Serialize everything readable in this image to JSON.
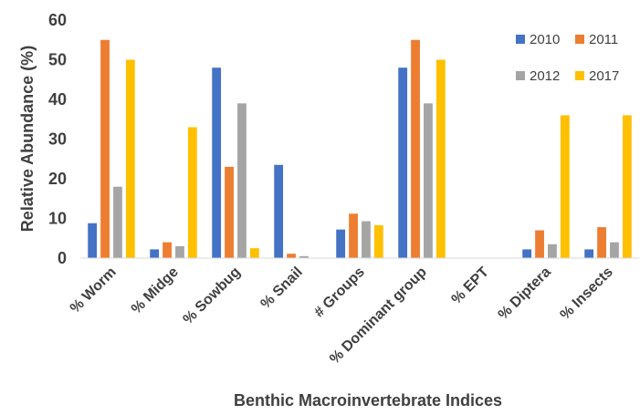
{
  "chart_data": {
    "type": "bar",
    "title": "",
    "xlabel": "Benthic Macroinvertebrate Indices",
    "ylabel": "Relative Abundance (%)",
    "ylim": [
      0,
      60
    ],
    "yticks": [
      0,
      10,
      20,
      30,
      40,
      50,
      60
    ],
    "grid": false,
    "legend_position": "top-right",
    "categories": [
      "% Worm",
      "% Midge",
      "% Sowbug",
      "% Snail",
      "# Groups",
      "% Dominant group",
      "% EPT",
      "% Diptera",
      "% Insects"
    ],
    "series": [
      {
        "name": "2010",
        "color": "#4472C4",
        "values": [
          8.8,
          2.2,
          48,
          23.5,
          7.2,
          48,
          0,
          2.2,
          2.2
        ]
      },
      {
        "name": "2011",
        "color": "#ED7D31",
        "values": [
          55,
          4,
          23,
          1.1,
          11.2,
          55,
          0,
          7,
          7.8
        ]
      },
      {
        "name": "2012",
        "color": "#A5A5A5",
        "values": [
          18,
          3,
          39,
          0.5,
          9.3,
          39,
          0,
          3.5,
          4
        ]
      },
      {
        "name": "2017",
        "color": "#FFC000",
        "values": [
          50,
          33,
          2.5,
          0,
          8.3,
          50,
          0,
          36,
          36
        ]
      }
    ]
  }
}
